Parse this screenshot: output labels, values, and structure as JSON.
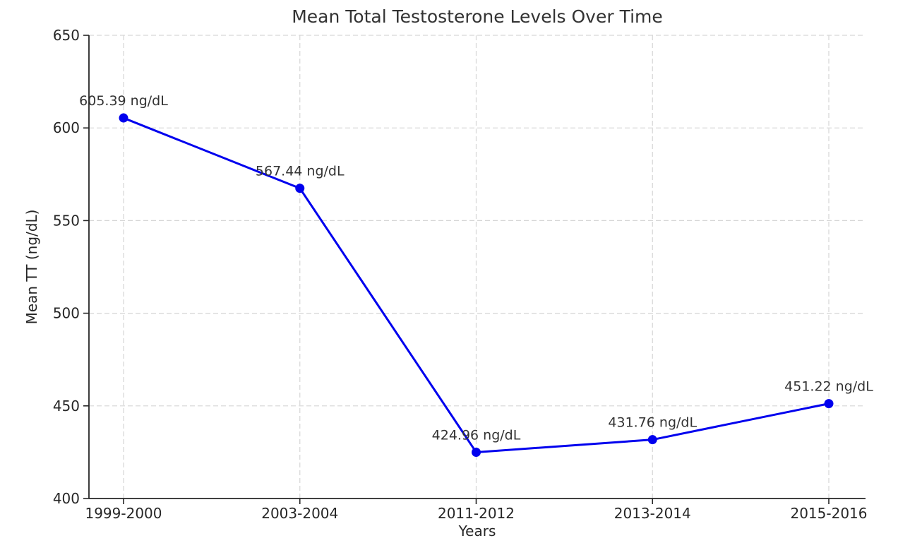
{
  "chart_data": {
    "type": "line",
    "title": "Mean Total Testosterone Levels Over Time",
    "xlabel": "Years",
    "ylabel": "Mean TT (ng/dL)",
    "categories": [
      "1999-2000",
      "2003-2004",
      "2011-2012",
      "2013-2014",
      "2015-2016"
    ],
    "series": [
      {
        "name": "Mean TT",
        "values": [
          605.39,
          567.44,
          424.96,
          431.76,
          451.22
        ]
      }
    ],
    "point_labels": [
      "605.39 ng/dL",
      "567.44 ng/dL",
      "424.96 ng/dL",
      "431.76 ng/dL",
      "451.22 ng/dL"
    ],
    "ylim": [
      400,
      650
    ],
    "yticks": [
      400,
      450,
      500,
      550,
      600,
      650
    ],
    "grid": true,
    "grid_style": "dashed",
    "legend_position": "none",
    "marker": "circle",
    "colors": {
      "line": "#0000ee",
      "marker": "#0000ee",
      "grid": "#d6d6d6",
      "axis": "#262626",
      "tick_text": "#262626",
      "title_text": "#333333",
      "annotation_text": "#333333",
      "background": "#ffffff"
    }
  }
}
